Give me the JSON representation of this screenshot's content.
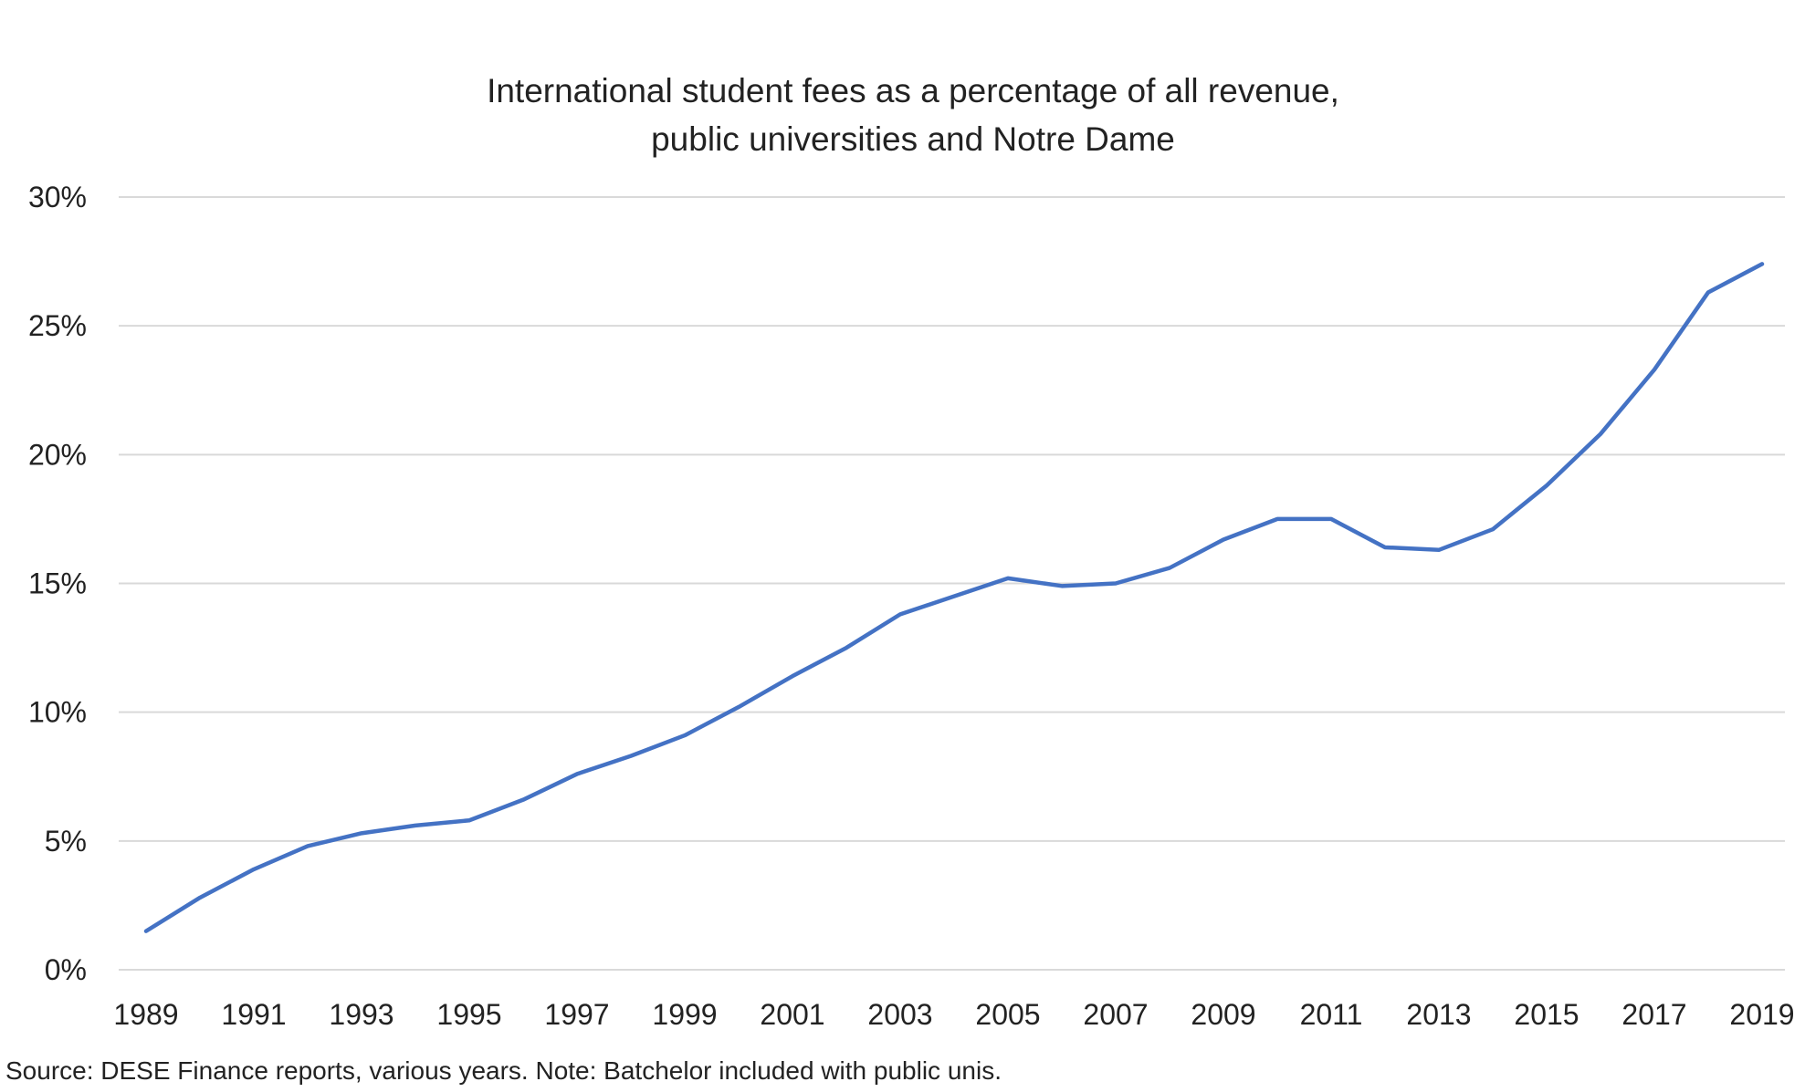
{
  "chart_data": {
    "type": "line",
    "title": "International student fees as a percentage of all revenue,",
    "subtitle": "public universities and Notre Dame",
    "xlabel": "",
    "ylabel": "",
    "ylim": [
      0,
      30
    ],
    "y_ticks": [
      0,
      5,
      10,
      15,
      20,
      25,
      30
    ],
    "y_tick_labels": [
      "0%",
      "5%",
      "10%",
      "15%",
      "20%",
      "25%",
      "30%"
    ],
    "x_tick_labels": [
      "1989",
      "1991",
      "1993",
      "1995",
      "1997",
      "1999",
      "2001",
      "2003",
      "2005",
      "2007",
      "2009",
      "2011",
      "2013",
      "2015",
      "2017",
      "2019"
    ],
    "grid": true,
    "legend": "none",
    "series": [
      {
        "name": "International student fees share of revenue",
        "color": "#4472C4",
        "x": [
          1989,
          1990,
          1991,
          1992,
          1993,
          1994,
          1995,
          1996,
          1997,
          1998,
          1999,
          2000,
          2001,
          2002,
          2003,
          2004,
          2005,
          2006,
          2007,
          2008,
          2009,
          2010,
          2011,
          2012,
          2013,
          2014,
          2015,
          2016,
          2017,
          2018,
          2019
        ],
        "values": [
          1.5,
          2.8,
          3.9,
          4.8,
          5.3,
          5.6,
          5.8,
          6.6,
          7.6,
          8.3,
          9.1,
          10.2,
          11.4,
          12.5,
          13.8,
          14.5,
          15.2,
          14.9,
          15.0,
          15.6,
          16.7,
          17.5,
          17.5,
          16.4,
          16.3,
          17.1,
          18.8,
          20.8,
          23.3,
          26.3,
          27.4
        ]
      }
    ]
  },
  "source_note": "Source: DESE Finance reports, various years. Note: Batchelor included with public unis."
}
